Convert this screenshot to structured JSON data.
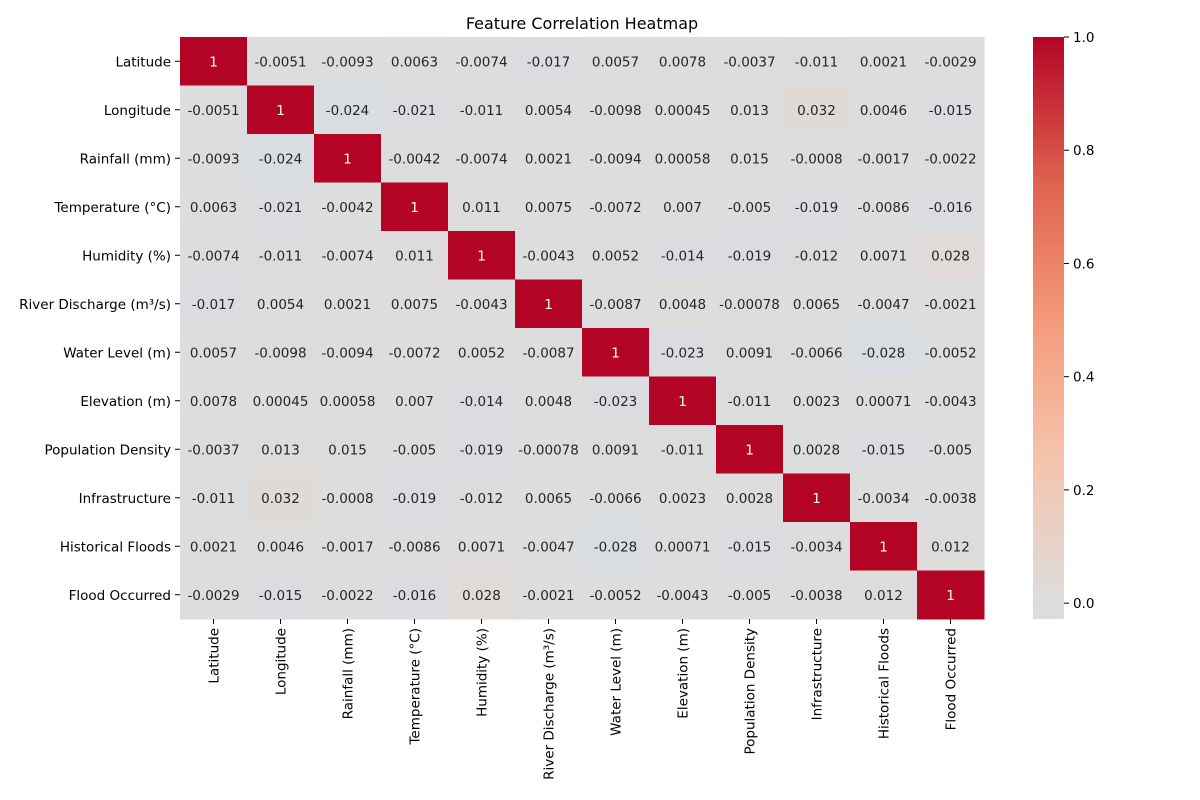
{
  "chart_data": {
    "type": "heatmap",
    "title": "Feature Correlation Heatmap",
    "xlabel": "",
    "ylabel": "",
    "labels": [
      "Latitude",
      "Longitude",
      "Rainfall (mm)",
      "Temperature (°C)",
      "Humidity (%)",
      "River Discharge (m³/s)",
      "Water Level (m)",
      "Elevation (m)",
      "Population Density",
      "Infrastructure",
      "Historical Floods",
      "Flood Occurred"
    ],
    "matrix": [
      [
        "1",
        "-0.0051",
        "-0.0093",
        "0.0063",
        "-0.0074",
        "-0.017",
        "0.0057",
        "0.0078",
        "-0.0037",
        "-0.011",
        "0.0021",
        "-0.0029"
      ],
      [
        "-0.0051",
        "1",
        "-0.024",
        "-0.021",
        "-0.011",
        "0.0054",
        "-0.0098",
        "0.00045",
        "0.013",
        "0.032",
        "0.0046",
        "-0.015"
      ],
      [
        "-0.0093",
        "-0.024",
        "1",
        "-0.0042",
        "-0.0074",
        "0.0021",
        "-0.0094",
        "0.00058",
        "0.015",
        "-0.0008",
        "-0.0017",
        "-0.0022"
      ],
      [
        "0.0063",
        "-0.021",
        "-0.0042",
        "1",
        "0.011",
        "0.0075",
        "-0.0072",
        "0.007",
        "-0.005",
        "-0.019",
        "-0.0086",
        "-0.016"
      ],
      [
        "-0.0074",
        "-0.011",
        "-0.0074",
        "0.011",
        "1",
        "-0.0043",
        "0.0052",
        "-0.014",
        "-0.019",
        "-0.012",
        "0.0071",
        "0.028"
      ],
      [
        "-0.017",
        "0.0054",
        "0.0021",
        "0.0075",
        "-0.0043",
        "1",
        "-0.0087",
        "0.0048",
        "-0.00078",
        "0.0065",
        "-0.0047",
        "-0.0021"
      ],
      [
        "0.0057",
        "-0.0098",
        "-0.0094",
        "-0.0072",
        "0.0052",
        "-0.0087",
        "1",
        "-0.023",
        "0.0091",
        "-0.0066",
        "-0.028",
        "-0.0052"
      ],
      [
        "0.0078",
        "0.00045",
        "0.00058",
        "0.007",
        "-0.014",
        "0.0048",
        "-0.023",
        "1",
        "-0.011",
        "0.0023",
        "0.00071",
        "-0.0043"
      ],
      [
        "-0.0037",
        "0.013",
        "0.015",
        "-0.005",
        "-0.019",
        "-0.00078",
        "0.0091",
        "-0.011",
        "1",
        "0.0028",
        "-0.015",
        "-0.005"
      ],
      [
        "-0.011",
        "0.032",
        "-0.0008",
        "-0.019",
        "-0.012",
        "0.0065",
        "-0.0066",
        "0.0023",
        "0.0028",
        "1",
        "-0.0034",
        "-0.0038"
      ],
      [
        "0.0021",
        "0.0046",
        "-0.0017",
        "-0.0086",
        "0.0071",
        "-0.0047",
        "-0.028",
        "0.00071",
        "-0.015",
        "-0.0034",
        "1",
        "0.012"
      ],
      [
        "-0.0029",
        "-0.015",
        "-0.0022",
        "-0.016",
        "0.028",
        "-0.0021",
        "-0.0052",
        "-0.0043",
        "-0.005",
        "-0.0038",
        "0.012",
        "1"
      ]
    ],
    "colorbar": {
      "vmin": -0.028,
      "vmax": 1.0,
      "ticks": [
        "0.0",
        "0.2",
        "0.4",
        "0.6",
        "0.8",
        "1.0"
      ],
      "colormap": "coolwarm",
      "center": 0
    },
    "grid": false,
    "legend": "right"
  }
}
